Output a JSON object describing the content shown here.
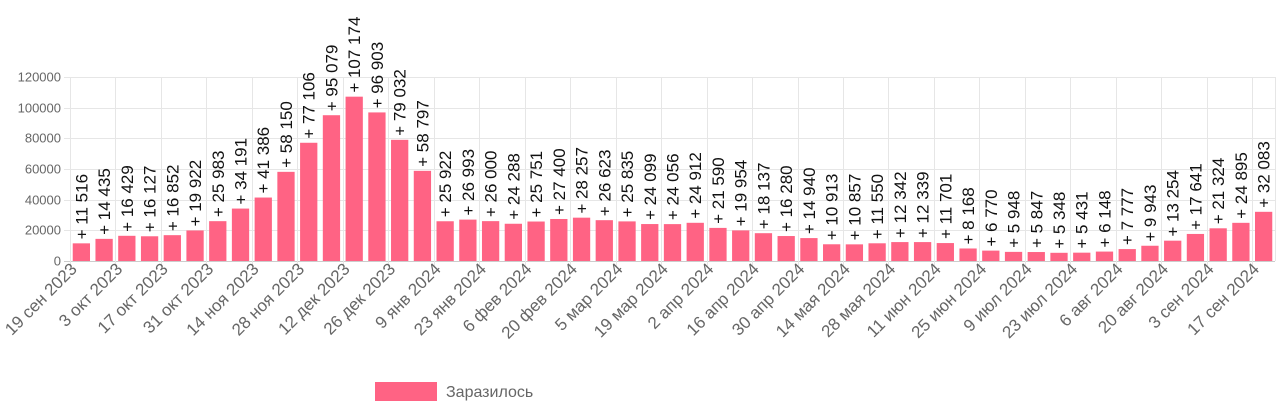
{
  "chart_data": {
    "type": "bar",
    "ylim": [
      0,
      120000
    ],
    "y_ticks": [
      0,
      20000,
      40000,
      60000,
      80000,
      100000,
      120000
    ],
    "grid": true,
    "legend_position": "bottom",
    "series": [
      {
        "name": "Заразилось",
        "color": "#ff6384",
        "values": [
          11516,
          14435,
          16429,
          16127,
          16852,
          19922,
          25983,
          34191,
          41386,
          58150,
          77106,
          95079,
          107174,
          96903,
          79032,
          58797,
          25922,
          26993,
          26000,
          24288,
          25751,
          27400,
          28257,
          26623,
          25835,
          24099,
          24056,
          24912,
          21590,
          19954,
          18137,
          16280,
          14940,
          10913,
          10857,
          11550,
          12342,
          12339,
          11701,
          8168,
          6770,
          5948,
          5847,
          5348,
          5431,
          6148,
          7777,
          9943,
          13254,
          17641,
          21324,
          24895,
          32083
        ]
      }
    ],
    "value_labels": [
      "+ 11 516",
      "+ 14 435",
      "+ 16 429",
      "+ 16 127",
      "+ 16 852",
      "+ 19 922",
      "+ 25 983",
      "+ 34 191",
      "+ 41 386",
      "+ 58 150",
      "+ 77 106",
      "+ 95 079",
      "+ 107 174",
      "+ 96 903",
      "+ 79 032",
      "+ 58 797",
      "+ 25 922",
      "+ 26 993",
      "+ 26 000",
      "+ 24 288",
      "+ 25 751",
      "+ 27 400",
      "+ 28 257",
      "+ 26 623",
      "+ 25 835",
      "+ 24 099",
      "+ 24 056",
      "+ 24 912",
      "+ 21 590",
      "+ 19 954",
      "+ 18 137",
      "+ 16 280",
      "+ 14 940",
      "+ 10 913",
      "+ 10 857",
      "+ 11 550",
      "+ 12 342",
      "+ 12 339",
      "+ 11 701",
      "+ 8 168",
      "+ 6 770",
      "+ 5 948",
      "+ 5 847",
      "+ 5 348",
      "+ 5 431",
      "+ 6 148",
      "+ 7 777",
      "+ 9 943",
      "+ 13 254",
      "+ 17 641",
      "+ 21 324",
      "+ 24 895",
      "+ 32 083"
    ],
    "x_tick_labels": [
      "19 сен 2023",
      "3 окт 2023",
      "17 окт 2023",
      "31 окт 2023",
      "14 ноя 2023",
      "28 ноя 2023",
      "12 дек 2023",
      "26 дек 2023",
      "9 янв 2024",
      "23 янв 2024",
      "6 фев 2024",
      "20 фев 2024",
      "5 мар 2024",
      "19 мар 2024",
      "2 апр 2024",
      "16 апр 2024",
      "30 апр 2024",
      "14 мая 2024",
      "28 мая 2024",
      "11 июн 2024",
      "25 июн 2024",
      "9 июл 2024",
      "23 июл 2024",
      "6 авг 2024",
      "20 авг 2024",
      "3 сен 2024",
      "17 сен 2024"
    ],
    "x_tick_every": 2
  }
}
